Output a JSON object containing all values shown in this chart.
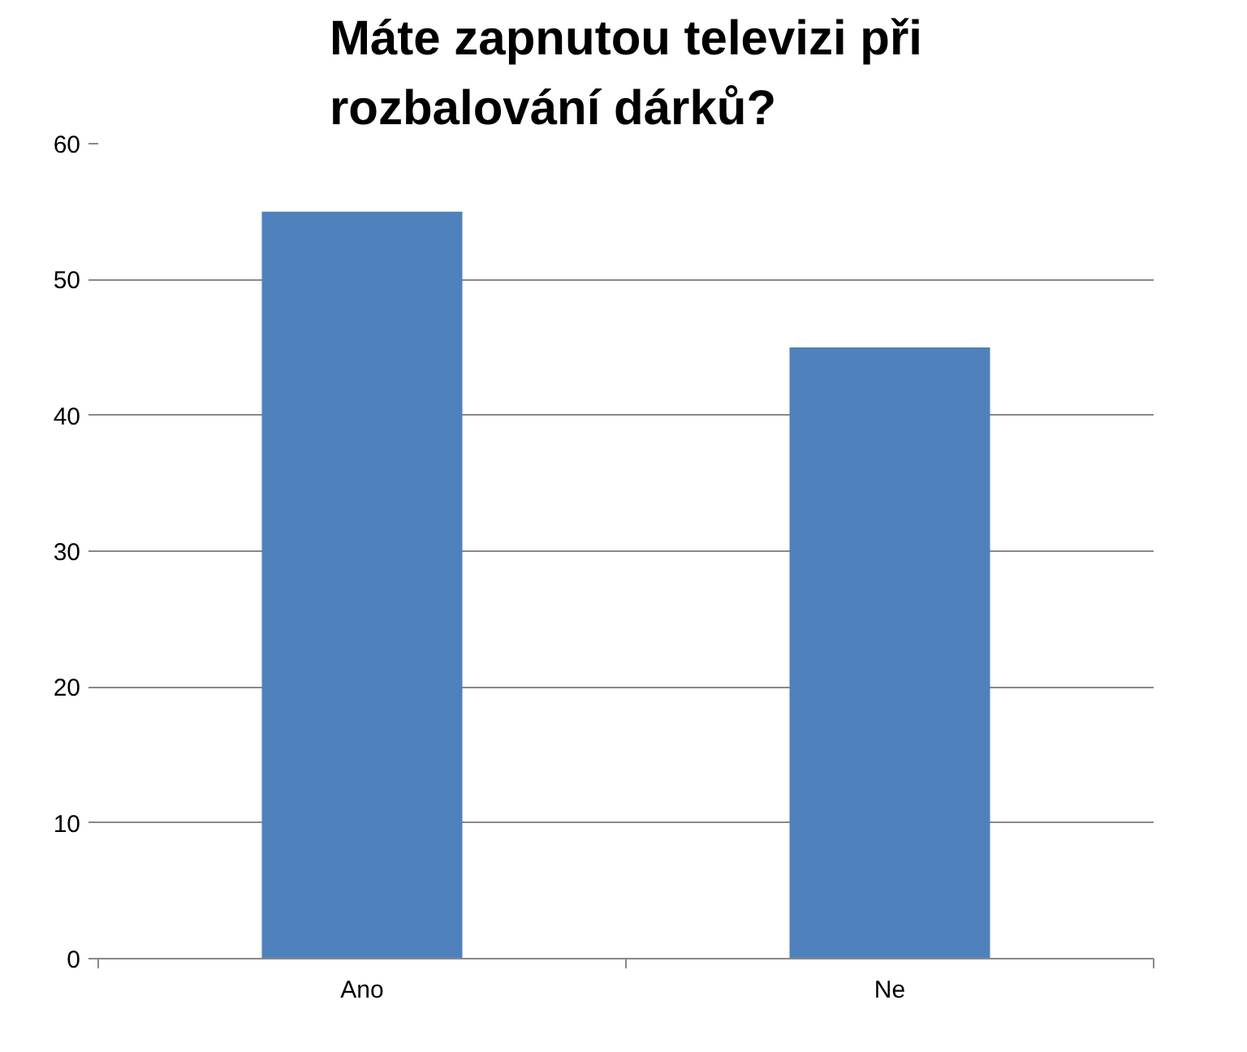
{
  "chart_data": {
    "type": "bar",
    "title": "Máte zapnutou televizi při rozbalování dárků?",
    "categories": [
      "Ano",
      "Ne"
    ],
    "values": [
      55,
      45
    ],
    "color": "#4f81bd",
    "ylim": [
      0,
      60
    ],
    "yticks": [
      0,
      10,
      20,
      30,
      40,
      50,
      60
    ],
    "grid": "y"
  }
}
